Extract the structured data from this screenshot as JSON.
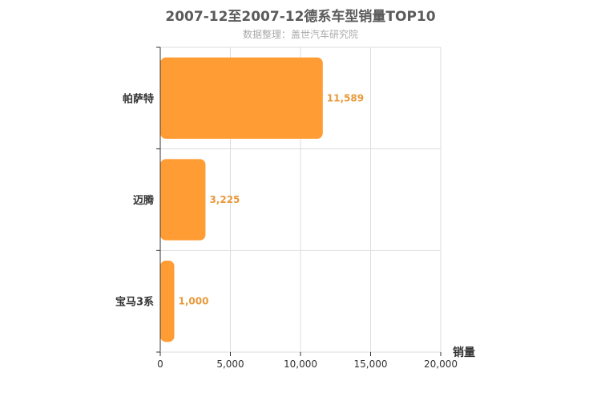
{
  "header": {
    "title": "2007-12至2007-12德系车型销量TOP10",
    "subtitle": "数据整理：盖世汽车研究院"
  },
  "chart_data": {
    "type": "bar",
    "orientation": "horizontal",
    "title": "2007-12至2007-12德系车型销量TOP10",
    "subtitle": "数据整理：盖世汽车研究院",
    "xlabel": "销量",
    "ylabel": "",
    "categories": [
      "帕萨特",
      "迈腾",
      "宝马3系"
    ],
    "values": [
      11589,
      3225,
      1000
    ],
    "value_labels": [
      "11,589",
      "3,225",
      "1,000"
    ],
    "xlim": [
      0,
      20000
    ],
    "xticks": [
      0,
      5000,
      10000,
      15000,
      20000
    ],
    "xtick_labels": [
      "0",
      "5,000",
      "10,000",
      "15,000",
      "20,000"
    ],
    "grid": true,
    "bar_color": "#ff9c33",
    "label_color": "#e89a3c"
  }
}
